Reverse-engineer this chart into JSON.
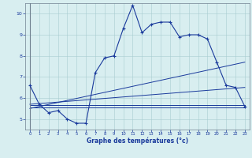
{
  "xlabel": "Graphe des températures (°c)",
  "background_color": "#d8eef0",
  "line_color": "#1a3a9c",
  "xlim": [
    -0.5,
    23.5
  ],
  "ylim": [
    4.5,
    10.5
  ],
  "xticks": [
    0,
    1,
    2,
    3,
    4,
    5,
    6,
    7,
    8,
    9,
    10,
    11,
    12,
    13,
    14,
    15,
    16,
    17,
    18,
    19,
    20,
    21,
    22,
    23
  ],
  "yticks": [
    5,
    6,
    7,
    8,
    9,
    10
  ],
  "series": {
    "main": {
      "x": [
        0,
        1,
        2,
        3,
        4,
        5,
        6,
        7,
        8,
        9,
        10,
        11,
        12,
        13,
        14,
        15,
        16,
        17,
        18,
        19,
        20,
        21,
        22,
        23
      ],
      "y": [
        6.6,
        5.7,
        5.3,
        5.4,
        5.0,
        4.8,
        4.8,
        7.2,
        7.9,
        8.0,
        9.3,
        10.4,
        9.1,
        9.5,
        9.6,
        9.6,
        8.9,
        9.0,
        9.0,
        8.8,
        7.7,
        6.6,
        6.5,
        5.6
      ]
    },
    "line1": {
      "x": [
        0,
        23
      ],
      "y": [
        5.55,
        5.55
      ]
    },
    "line2": {
      "x": [
        0,
        23
      ],
      "y": [
        5.65,
        5.65
      ]
    },
    "line3": {
      "x": [
        0,
        23
      ],
      "y": [
        5.5,
        7.7
      ]
    },
    "line4": {
      "x": [
        0,
        23
      ],
      "y": [
        5.7,
        6.5
      ]
    }
  }
}
